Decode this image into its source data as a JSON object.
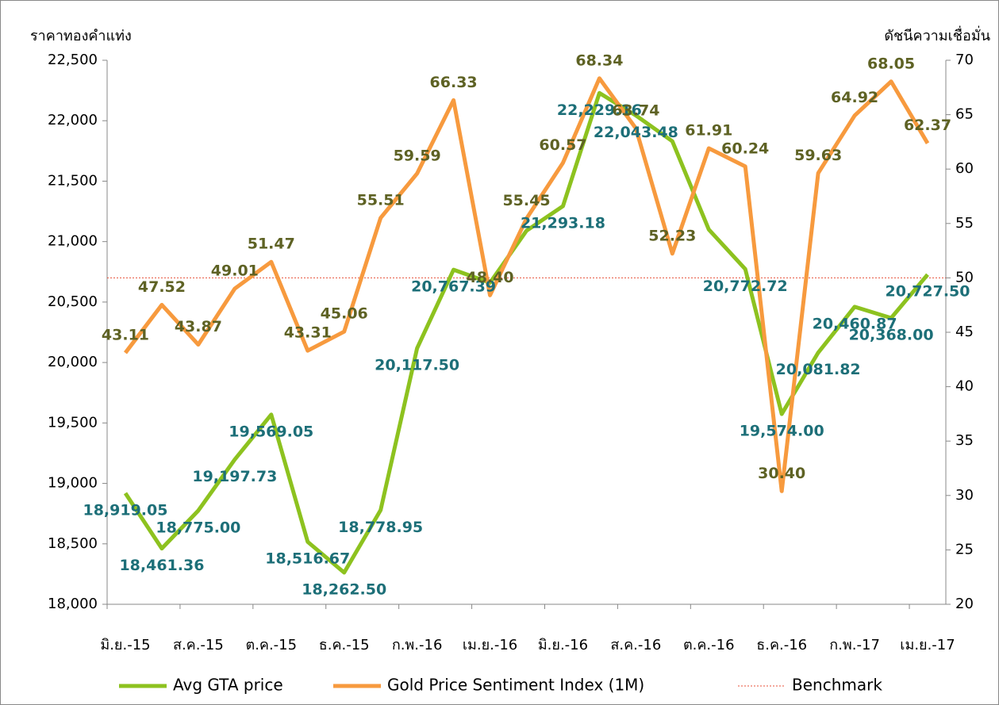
{
  "chart_data": {
    "type": "line",
    "y_label": "ราคาทองคำแท่ง",
    "y2_label": "ดัชนีความเชื่อมั่น",
    "categories": [
      "มิ.ย.-15",
      null,
      "ส.ค.-15",
      null,
      "ต.ค.-15",
      null,
      "ธ.ค.-15",
      null,
      "ก.พ.-16",
      null,
      "เม.ย.-16",
      null,
      "มิ.ย.-16",
      null,
      "ส.ค.-16",
      null,
      "ต.ค.-16",
      null,
      "ธ.ค.-16",
      null,
      "ก.พ.-17",
      null,
      "เม.ย.-17"
    ],
    "series": [
      {
        "name": "Avg GTA price",
        "color": "#8dc21f",
        "axis": "y",
        "label_color": "#1d6f78",
        "values": [
          18919.05,
          18461.36,
          18775.0,
          19197.73,
          19569.05,
          18516.67,
          18262.5,
          18778.95,
          20117.5,
          20767.39,
          20660,
          21090,
          21293.18,
          22229.16,
          22043.48,
          21830,
          21100,
          20772.72,
          19574.0,
          20081.82,
          20460.87,
          20368.0,
          20727.5
        ],
        "value_labels": [
          "18,919.05",
          "18,461.36",
          "18,775.00",
          "19,197.73",
          "19,569.05",
          "18,516.67",
          "18,262.50",
          "18,778.95",
          "20,117.50",
          "20,767.39",
          null,
          null,
          "21,293.18",
          "22,229.16",
          "22,043.48",
          null,
          null,
          "20,772.72",
          "19,574.00",
          "20,081.82",
          "20,460.87",
          "20,368.00",
          "20,727.50"
        ]
      },
      {
        "name": "Gold Price Sentiment Index (1M)",
        "color": "#f79a3e",
        "axis": "y2",
        "label_color": "#5e6224",
        "values": [
          43.11,
          47.52,
          43.87,
          49.01,
          51.47,
          43.31,
          45.06,
          55.51,
          59.59,
          66.33,
          48.4,
          55.45,
          60.57,
          68.34,
          63.74,
          52.23,
          61.91,
          60.24,
          30.4,
          59.63,
          64.92,
          68.05,
          62.37
        ],
        "value_labels": [
          "43.11",
          "47.52",
          "43.87",
          "49.01",
          "51.47",
          "43.31",
          "45.06",
          "55.51",
          "59.59",
          "66.33",
          "48.40",
          "55.45",
          "60.57",
          "68.34",
          "63.74",
          "52.23",
          "61.91",
          "60.24",
          "30.40",
          "59.63",
          "64.92",
          "68.05",
          "62.37"
        ]
      }
    ],
    "benchmark": {
      "name": "Benchmark",
      "value": 50,
      "color": "#e8503a",
      "axis": "y2"
    },
    "ylim": [
      18000,
      22500
    ],
    "yticks": [
      {
        "value": 18000,
        "label": "18,000"
      },
      {
        "value": 18500,
        "label": "18,500"
      },
      {
        "value": 19000,
        "label": "19,000"
      },
      {
        "value": 19500,
        "label": "19,500"
      },
      {
        "value": 20000,
        "label": "20,000"
      },
      {
        "value": 20500,
        "label": "20,500"
      },
      {
        "value": 21000,
        "label": "21,000"
      },
      {
        "value": 21500,
        "label": "21,500"
      },
      {
        "value": 22000,
        "label": "22,000"
      },
      {
        "value": 22500,
        "label": "22,500"
      }
    ],
    "y2lim": [
      20,
      70
    ],
    "y2ticks": [
      20,
      25,
      30,
      35,
      40,
      45,
      50,
      55,
      60,
      65,
      70
    ],
    "legend": "bottom"
  }
}
